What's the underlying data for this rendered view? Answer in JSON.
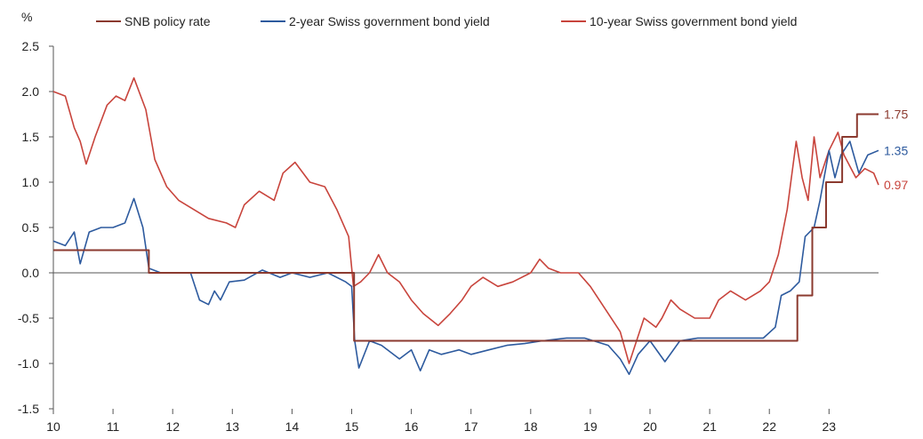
{
  "chart_data": {
    "type": "line",
    "ylabel": "%",
    "ylim": [
      -1.5,
      2.5
    ],
    "y_ticks": [
      "2.5",
      "2.0",
      "1.5",
      "1.0",
      "0.5",
      "0.0",
      "-0.5",
      "-1.0",
      "-1.5"
    ],
    "xlim": [
      2010,
      2023.83
    ],
    "x_ticks": [
      "10",
      "11",
      "12",
      "13",
      "14",
      "15",
      "16",
      "17",
      "18",
      "19",
      "20",
      "21",
      "22",
      "23"
    ],
    "legend_position": "top",
    "grid": false,
    "series": [
      {
        "name": "SNB policy rate",
        "color": "#8B3A2F",
        "step": true,
        "end_label": "1.75",
        "points": [
          [
            2010.0,
            0.25
          ],
          [
            2011.6,
            0.25
          ],
          [
            2011.6,
            0.0
          ],
          [
            2015.04,
            0.0
          ],
          [
            2015.04,
            -0.75
          ],
          [
            2022.47,
            -0.75
          ],
          [
            2022.47,
            -0.25
          ],
          [
            2022.72,
            -0.25
          ],
          [
            2022.72,
            0.5
          ],
          [
            2022.95,
            0.5
          ],
          [
            2022.95,
            1.0
          ],
          [
            2023.22,
            1.0
          ],
          [
            2023.22,
            1.5
          ],
          [
            2023.47,
            1.5
          ],
          [
            2023.47,
            1.75
          ],
          [
            2023.83,
            1.75
          ]
        ]
      },
      {
        "name": "2-year Swiss government bond yield",
        "color": "#2D5A9E",
        "step": false,
        "end_label": "1.35",
        "points": [
          [
            2010.0,
            0.35
          ],
          [
            2010.2,
            0.3
          ],
          [
            2010.35,
            0.45
          ],
          [
            2010.45,
            0.1
          ],
          [
            2010.6,
            0.45
          ],
          [
            2010.8,
            0.5
          ],
          [
            2011.0,
            0.5
          ],
          [
            2011.2,
            0.55
          ],
          [
            2011.35,
            0.82
          ],
          [
            2011.5,
            0.5
          ],
          [
            2011.6,
            0.05
          ],
          [
            2011.8,
            0.0
          ],
          [
            2012.0,
            0.0
          ],
          [
            2012.3,
            0.0
          ],
          [
            2012.45,
            -0.3
          ],
          [
            2012.6,
            -0.35
          ],
          [
            2012.7,
            -0.2
          ],
          [
            2012.8,
            -0.3
          ],
          [
            2012.95,
            -0.1
          ],
          [
            2013.2,
            -0.08
          ],
          [
            2013.5,
            0.03
          ],
          [
            2013.8,
            -0.05
          ],
          [
            2014.0,
            0.0
          ],
          [
            2014.3,
            -0.05
          ],
          [
            2014.6,
            0.0
          ],
          [
            2014.9,
            -0.1
          ],
          [
            2015.0,
            -0.15
          ],
          [
            2015.05,
            -0.75
          ],
          [
            2015.12,
            -1.05
          ],
          [
            2015.3,
            -0.75
          ],
          [
            2015.5,
            -0.8
          ],
          [
            2015.8,
            -0.95
          ],
          [
            2016.0,
            -0.85
          ],
          [
            2016.15,
            -1.08
          ],
          [
            2016.3,
            -0.85
          ],
          [
            2016.5,
            -0.9
          ],
          [
            2016.8,
            -0.85
          ],
          [
            2017.0,
            -0.9
          ],
          [
            2017.3,
            -0.85
          ],
          [
            2017.6,
            -0.8
          ],
          [
            2017.9,
            -0.78
          ],
          [
            2018.2,
            -0.75
          ],
          [
            2018.6,
            -0.72
          ],
          [
            2018.9,
            -0.72
          ],
          [
            2019.3,
            -0.8
          ],
          [
            2019.5,
            -0.95
          ],
          [
            2019.65,
            -1.12
          ],
          [
            2019.8,
            -0.9
          ],
          [
            2020.0,
            -0.75
          ],
          [
            2020.25,
            -0.98
          ],
          [
            2020.5,
            -0.75
          ],
          [
            2020.8,
            -0.72
          ],
          [
            2021.0,
            -0.72
          ],
          [
            2021.5,
            -0.72
          ],
          [
            2021.9,
            -0.72
          ],
          [
            2022.1,
            -0.6
          ],
          [
            2022.2,
            -0.25
          ],
          [
            2022.35,
            -0.2
          ],
          [
            2022.5,
            -0.1
          ],
          [
            2022.6,
            0.4
          ],
          [
            2022.75,
            0.5
          ],
          [
            2022.85,
            0.8
          ],
          [
            2023.0,
            1.35
          ],
          [
            2023.1,
            1.05
          ],
          [
            2023.2,
            1.3
          ],
          [
            2023.35,
            1.45
          ],
          [
            2023.5,
            1.1
          ],
          [
            2023.65,
            1.3
          ],
          [
            2023.83,
            1.35
          ]
        ]
      },
      {
        "name": "10-year Swiss government bond yield",
        "color": "#C8443C",
        "step": false,
        "end_label": "0.97",
        "points": [
          [
            2010.0,
            2.0
          ],
          [
            2010.2,
            1.95
          ],
          [
            2010.35,
            1.6
          ],
          [
            2010.45,
            1.45
          ],
          [
            2010.55,
            1.2
          ],
          [
            2010.7,
            1.5
          ],
          [
            2010.9,
            1.85
          ],
          [
            2011.05,
            1.95
          ],
          [
            2011.2,
            1.9
          ],
          [
            2011.35,
            2.15
          ],
          [
            2011.55,
            1.8
          ],
          [
            2011.7,
            1.25
          ],
          [
            2011.9,
            0.95
          ],
          [
            2012.1,
            0.8
          ],
          [
            2012.3,
            0.72
          ],
          [
            2012.6,
            0.6
          ],
          [
            2012.9,
            0.55
          ],
          [
            2013.05,
            0.5
          ],
          [
            2013.2,
            0.75
          ],
          [
            2013.45,
            0.9
          ],
          [
            2013.7,
            0.8
          ],
          [
            2013.85,
            1.1
          ],
          [
            2014.05,
            1.22
          ],
          [
            2014.3,
            1.0
          ],
          [
            2014.55,
            0.95
          ],
          [
            2014.75,
            0.7
          ],
          [
            2014.95,
            0.4
          ],
          [
            2015.03,
            -0.15
          ],
          [
            2015.15,
            -0.1
          ],
          [
            2015.3,
            0.0
          ],
          [
            2015.45,
            0.2
          ],
          [
            2015.6,
            0.0
          ],
          [
            2015.8,
            -0.1
          ],
          [
            2016.0,
            -0.3
          ],
          [
            2016.2,
            -0.45
          ],
          [
            2016.45,
            -0.58
          ],
          [
            2016.65,
            -0.45
          ],
          [
            2016.85,
            -0.3
          ],
          [
            2017.0,
            -0.15
          ],
          [
            2017.2,
            -0.05
          ],
          [
            2017.45,
            -0.15
          ],
          [
            2017.7,
            -0.1
          ],
          [
            2018.0,
            0.0
          ],
          [
            2018.15,
            0.15
          ],
          [
            2018.3,
            0.05
          ],
          [
            2018.5,
            0.0
          ],
          [
            2018.8,
            0.0
          ],
          [
            2019.0,
            -0.15
          ],
          [
            2019.25,
            -0.4
          ],
          [
            2019.5,
            -0.65
          ],
          [
            2019.65,
            -1.0
          ],
          [
            2019.75,
            -0.8
          ],
          [
            2019.9,
            -0.5
          ],
          [
            2020.1,
            -0.6
          ],
          [
            2020.2,
            -0.5
          ],
          [
            2020.35,
            -0.3
          ],
          [
            2020.5,
            -0.4
          ],
          [
            2020.75,
            -0.5
          ],
          [
            2021.0,
            -0.5
          ],
          [
            2021.15,
            -0.3
          ],
          [
            2021.35,
            -0.2
          ],
          [
            2021.6,
            -0.3
          ],
          [
            2021.85,
            -0.2
          ],
          [
            2022.0,
            -0.1
          ],
          [
            2022.15,
            0.2
          ],
          [
            2022.3,
            0.7
          ],
          [
            2022.45,
            1.45
          ],
          [
            2022.55,
            1.05
          ],
          [
            2022.65,
            0.8
          ],
          [
            2022.75,
            1.5
          ],
          [
            2022.85,
            1.05
          ],
          [
            2023.0,
            1.35
          ],
          [
            2023.15,
            1.55
          ],
          [
            2023.25,
            1.3
          ],
          [
            2023.45,
            1.05
          ],
          [
            2023.6,
            1.15
          ],
          [
            2023.75,
            1.1
          ],
          [
            2023.83,
            0.97
          ]
        ]
      }
    ]
  }
}
